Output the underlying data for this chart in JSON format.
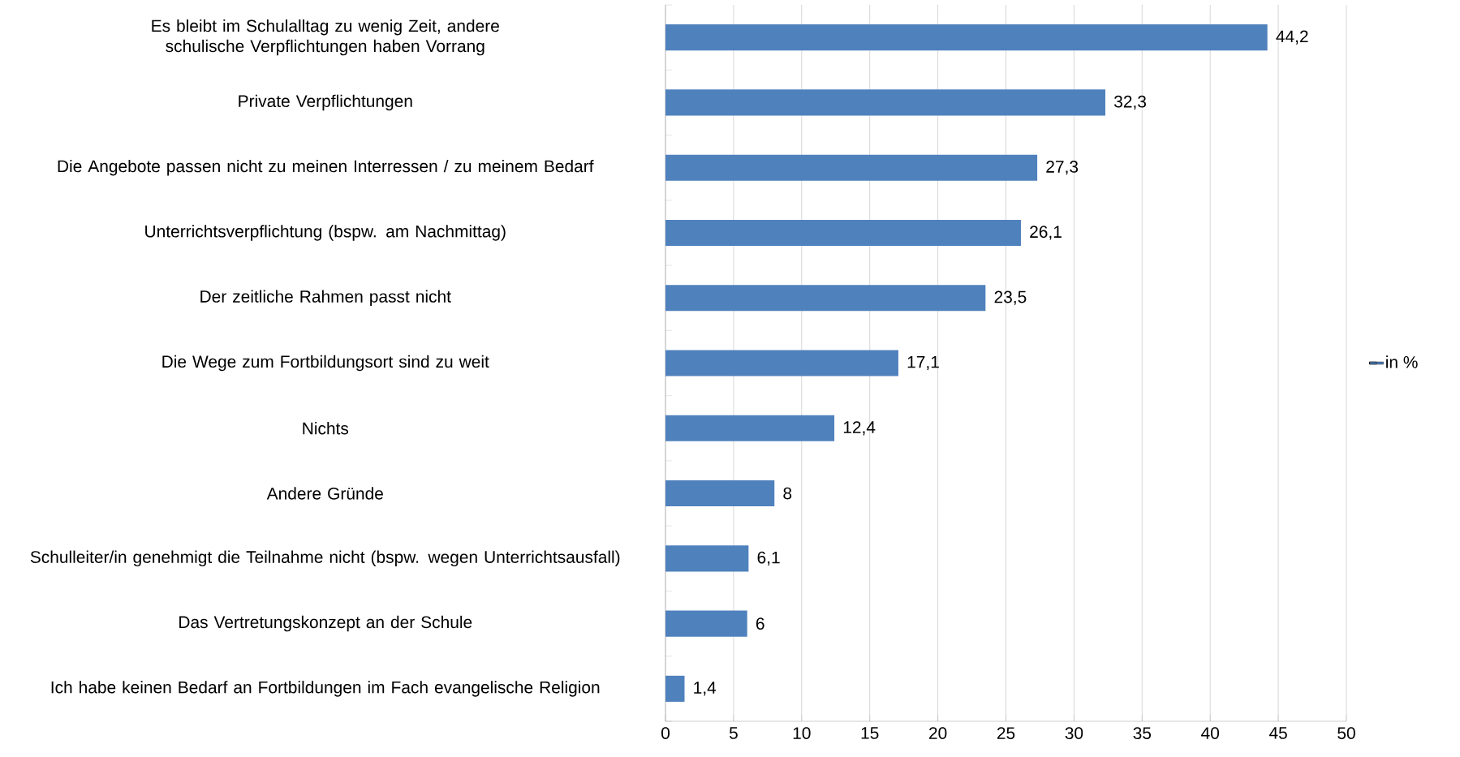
{
  "chart_data": {
    "type": "bar",
    "orientation": "horizontal",
    "categories": [
      "Es bleibt im Schulalltag zu wenig Zeit, andere schulische Verpflichtungen haben Vorrang",
      "Private Verpflichtungen",
      "Die Angebote passen nicht zu meinen Interressen / zu meinem Bedarf",
      "Unterrichtsverpflichtung (bspw. am Nachmittag)",
      "Der zeitliche Rahmen passt nicht",
      "Die Wege zum Fortbildungsort sind zu weit",
      "Nichts",
      "Andere Gründe",
      "Schulleiter/in genehmigt die Teilnahme nicht (bspw. wegen Unterrichtsausfall)",
      "Das Vertretungskonzept an der Schule",
      "Ich habe keinen Bedarf an Fortbildungen im Fach evangelische Religion"
    ],
    "series": [
      {
        "name": "in %",
        "color": "#4f81bd",
        "values": [
          44.2,
          32.3,
          27.3,
          26.1,
          23.5,
          17.1,
          12.4,
          8,
          6.1,
          6,
          1.4
        ],
        "value_labels": [
          "44,2",
          "32,3",
          "27,3",
          "26,1",
          "23,5",
          "17,1",
          "12,4",
          "8",
          "6,1",
          "6",
          "1,4"
        ]
      }
    ],
    "xlim": [
      0,
      50
    ],
    "xticks": [
      0,
      5,
      10,
      15,
      20,
      25,
      30,
      35,
      40,
      45,
      50
    ],
    "grid": "x",
    "legend": "right"
  }
}
